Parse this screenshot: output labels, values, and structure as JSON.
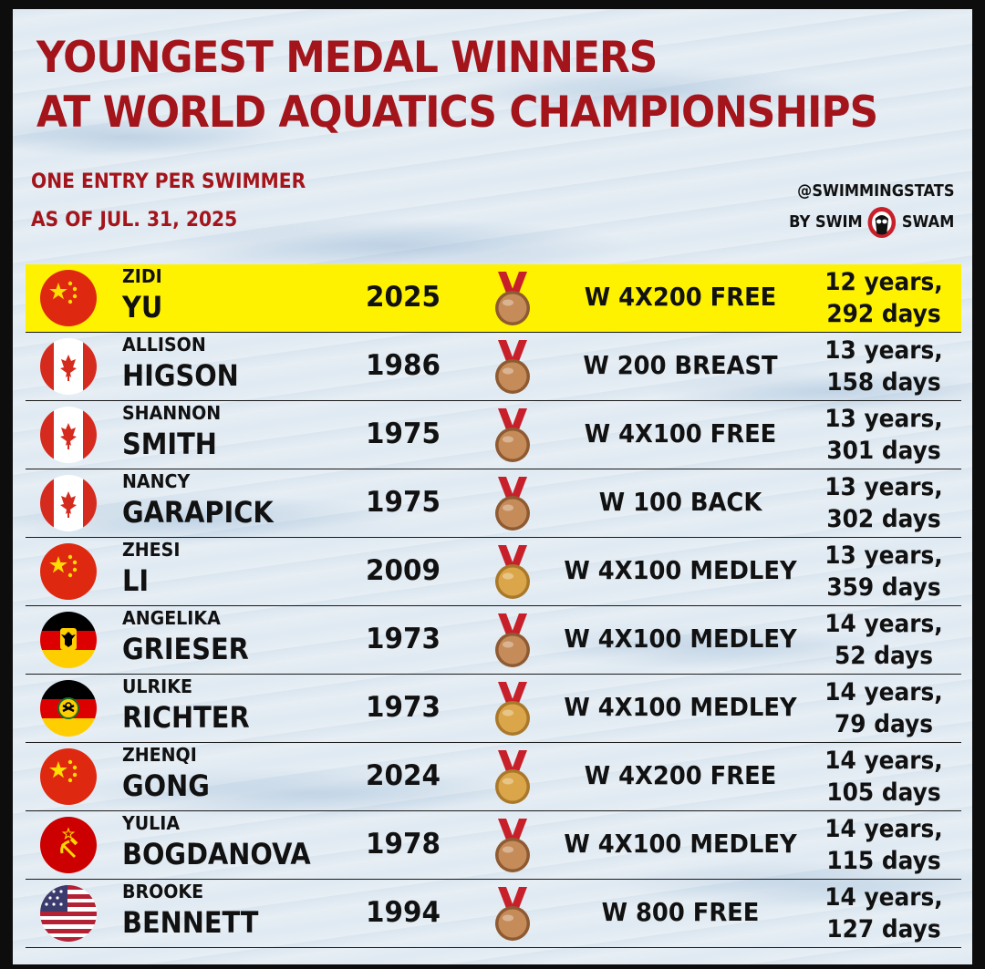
{
  "title_line1": "YOUNGEST MEDAL WINNERS",
  "title_line2": "AT WORLD AQUATICS CHAMPIONSHIPS",
  "subtitle_line1": "ONE ENTRY PER SWIMMER",
  "subtitle_line2": "AS OF JUL. 31, 2025",
  "credit_handle": "@SWIMMINGSTATS",
  "credit_by": "BY SWIM",
  "credit_brand": "SWAM",
  "colors": {
    "title_red": "#a3141b",
    "highlight": "#fff200",
    "bronze": "#c58c5a",
    "gold": "#dba64a",
    "ribbon": "#c8202a"
  },
  "rows": [
    {
      "first": "ZIDI",
      "last": "YU",
      "year": "2025",
      "event": "W 4X200 FREE",
      "age_years": "12 years,",
      "age_days": "292 days",
      "flag": "china",
      "medal": "bronze",
      "highlight": true
    },
    {
      "first": "ALLISON",
      "last": "HIGSON",
      "year": "1986",
      "event": "W 200 BREAST",
      "age_years": "13 years,",
      "age_days": "158 days",
      "flag": "canada",
      "medal": "bronze",
      "highlight": false
    },
    {
      "first": "SHANNON",
      "last": "SMITH",
      "year": "1975",
      "event": "W 4X100 FREE",
      "age_years": "13 years,",
      "age_days": "301 days",
      "flag": "canada",
      "medal": "bronze",
      "highlight": false
    },
    {
      "first": "NANCY",
      "last": "GARAPICK",
      "year": "1975",
      "event": "W 100 BACK",
      "age_years": "13 years,",
      "age_days": "302 days",
      "flag": "canada",
      "medal": "bronze",
      "highlight": false
    },
    {
      "first": "ZHESI",
      "last": "LI",
      "year": "2009",
      "event": "W 4X100 MEDLEY",
      "age_years": "13 years,",
      "age_days": "359 days",
      "flag": "china",
      "medal": "gold",
      "highlight": false
    },
    {
      "first": "ANGELIKA",
      "last": "GRIESER",
      "year": "1973",
      "event": "W 4X100 MEDLEY",
      "age_years": "14 years,",
      "age_days": "52 days",
      "flag": "west-germany",
      "medal": "bronze",
      "highlight": false
    },
    {
      "first": "ULRIKE",
      "last": "RICHTER",
      "year": "1973",
      "event": "W 4X100 MEDLEY",
      "age_years": "14 years,",
      "age_days": "79 days",
      "flag": "east-germany",
      "medal": "gold",
      "highlight": false
    },
    {
      "first": "ZHENQI",
      "last": "GONG",
      "year": "2024",
      "event": "W 4X200 FREE",
      "age_years": "14 years,",
      "age_days": "105 days",
      "flag": "china",
      "medal": "gold",
      "highlight": false
    },
    {
      "first": "YULIA",
      "last": "BOGDANOVA",
      "year": "1978",
      "event": "W 4X100 MEDLEY",
      "age_years": "14 years,",
      "age_days": "115 days",
      "flag": "soviet-union",
      "medal": "bronze",
      "highlight": false
    },
    {
      "first": "BROOKE",
      "last": "BENNETT",
      "year": "1994",
      "event": "W 800 FREE",
      "age_years": "14 years,",
      "age_days": "127 days",
      "flag": "usa",
      "medal": "bronze",
      "highlight": false
    }
  ]
}
